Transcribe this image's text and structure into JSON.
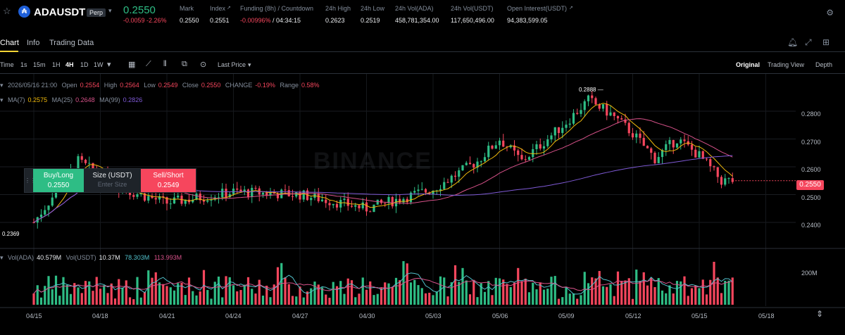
{
  "header": {
    "symbol": "ADAUSDT",
    "contract_badge": "Perp",
    "last_price": "0.2550",
    "change": "-0.0059 -2.26%",
    "stats": [
      {
        "label": "Mark",
        "value": "0.2550"
      },
      {
        "label": "Index",
        "value": "0.2551"
      },
      {
        "label": "Funding (8h) / Countdown",
        "value_a": "-0.00996%",
        "value_b": "/ 04:34:15"
      },
      {
        "label": "24h High",
        "value": "0.2623"
      },
      {
        "label": "24h Low",
        "value": "0.2519"
      },
      {
        "label": "24h Vol(ADA)",
        "value": "458,781,354.00"
      },
      {
        "label": "24h Vol(USDT)",
        "value": "117,650,496.00"
      },
      {
        "label": "Open Interest(USDT)",
        "value": "94,383,599.05"
      }
    ]
  },
  "tabs": [
    "Chart",
    "Info",
    "Trading Data"
  ],
  "toolbar": {
    "intervals": [
      "Time",
      "1s",
      "15m",
      "1H",
      "4H",
      "1D",
      "1W"
    ],
    "active_interval": "4H",
    "price_source": "Last Price",
    "views": [
      "Original",
      "Trading View",
      "Depth"
    ],
    "active_view": "Original"
  },
  "legend": {
    "datetime": "2026/05/16 21:00",
    "open_label": "Open",
    "open": "0.2554",
    "high_label": "High",
    "high": "0.2564",
    "low_label": "Low",
    "low": "0.2549",
    "close_label": "Close",
    "close": "0.2550",
    "change_label": "CHANGE",
    "change": "-0.19%",
    "range_label": "Range",
    "range": "0.58%",
    "ma7_label": "MA(7)",
    "ma7": "0.2575",
    "ma25_label": "MA(25)",
    "ma25": "0.2648",
    "ma99_label": "MA(99)",
    "ma99": "0.2826",
    "vol_label": "Vol(ADA)",
    "vol_ada": "40.579M",
    "volusdt_label": "Vol(USDT)",
    "vol_usdt": "10.37M",
    "vol_ma1": "78.303M",
    "vol_ma2": "113.993M"
  },
  "trade_box": {
    "buy_label": "Buy/Long",
    "buy_price": "0.2550",
    "size_label": "Size (USDT)",
    "size_placeholder": "Enter Size",
    "sell_label": "Sell/Short",
    "sell_price": "0.2549"
  },
  "watermark": "BINANCE",
  "annotations": {
    "high": "0.2888",
    "low": "0.2369"
  },
  "current_price_tag": "0.2550",
  "y_axis_labels": [
    "0.2800",
    "0.2700",
    "0.2600",
    "0.2500",
    "0.2400"
  ],
  "volume_axis_label": "200M",
  "x_axis_labels": [
    "04/15",
    "04/18",
    "04/21",
    "04/24",
    "04/27",
    "04/30",
    "05/03",
    "05/06",
    "05/09",
    "05/12",
    "05/15",
    "05/18"
  ],
  "colors": {
    "up": "#2ebd85",
    "down": "#f6465d",
    "ma7": "#f0b90b",
    "ma25": "#d8528a",
    "ma99": "#7f5ad6",
    "accent": "#fcd535"
  },
  "icons": [
    "star-icon",
    "bell-icon",
    "expand-icon",
    "settings-icon",
    "grid-icon",
    "gear-icon",
    "chevron-down-icon"
  ],
  "chart_data": {
    "type": "candlestick",
    "interval": "4H",
    "price_range": [
      0.234,
      0.291
    ],
    "annotated_high": 0.2888,
    "annotated_low": 0.2369,
    "key_points": [
      {
        "x": "04/15",
        "close": 0.24
      },
      {
        "x": "04/17",
        "close": 0.262
      },
      {
        "x": "04/19",
        "close": 0.252
      },
      {
        "x": "04/21",
        "close": 0.247
      },
      {
        "x": "04/24",
        "close": 0.251
      },
      {
        "x": "04/27",
        "close": 0.25
      },
      {
        "x": "04/30",
        "close": 0.245
      },
      {
        "x": "05/03",
        "close": 0.252
      },
      {
        "x": "05/05",
        "close": 0.262
      },
      {
        "x": "05/06",
        "close": 0.27
      },
      {
        "x": "05/07",
        "close": 0.262
      },
      {
        "x": "05/09",
        "close": 0.276
      },
      {
        "x": "05/10",
        "close": 0.284
      },
      {
        "x": "05/11",
        "close": 0.279
      },
      {
        "x": "05/12",
        "close": 0.272
      },
      {
        "x": "05/13",
        "close": 0.263
      },
      {
        "x": "05/14",
        "close": 0.27
      },
      {
        "x": "05/15",
        "close": 0.264
      },
      {
        "x": "05/16",
        "close": 0.255
      }
    ]
  }
}
